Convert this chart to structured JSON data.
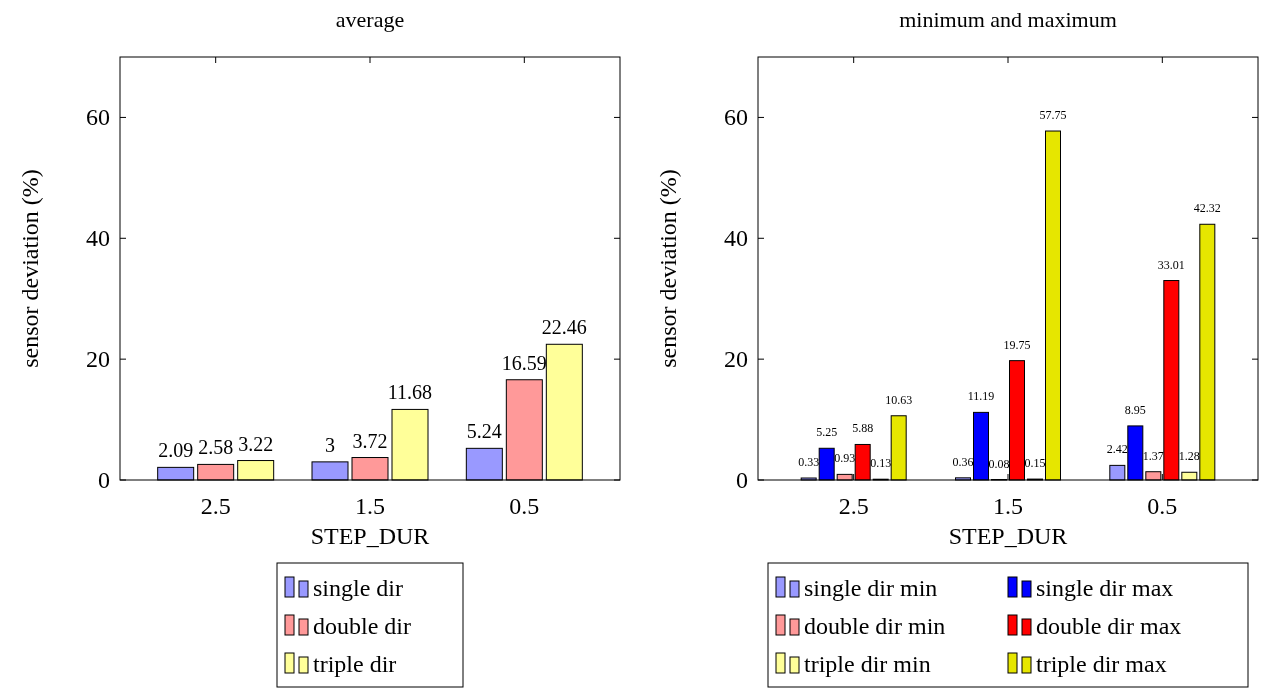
{
  "chart_data": [
    {
      "type": "bar",
      "title": "average",
      "xlabel": "STEP_DUR",
      "ylabel": "sensor deviation (%)",
      "categories": [
        "2.5",
        "1.5",
        "0.5"
      ],
      "ylim": [
        0,
        70
      ],
      "yticks": [
        0,
        20,
        40,
        60
      ],
      "data_labels": true,
      "legend": "bottom",
      "series": [
        {
          "name": "single dir",
          "color": "#9999ff",
          "values": [
            2.09,
            3,
            5.24
          ]
        },
        {
          "name": "double dir",
          "color": "#ff9999",
          "values": [
            2.58,
            3.72,
            16.59
          ]
        },
        {
          "name": "triple dir",
          "color": "#ffff99",
          "values": [
            3.22,
            11.68,
            22.46
          ]
        }
      ]
    },
    {
      "type": "bar",
      "title": "minimum and maximum",
      "xlabel": "STEP_DUR",
      "ylabel": "sensor deviation (%)",
      "categories": [
        "2.5",
        "1.5",
        "0.5"
      ],
      "ylim": [
        0,
        70
      ],
      "yticks": [
        0,
        20,
        40,
        60
      ],
      "data_labels": true,
      "legend": "bottom",
      "series": [
        {
          "name": "single dir min",
          "color": "#9999ff",
          "values": [
            0.33,
            0.36,
            2.42
          ]
        },
        {
          "name": "single dir max",
          "color": "#0000ff",
          "values": [
            5.25,
            11.19,
            8.95
          ]
        },
        {
          "name": "double dir min",
          "color": "#ff9999",
          "values": [
            0.93,
            0.08,
            1.37
          ]
        },
        {
          "name": "double dir max",
          "color": "#ff0000",
          "values": [
            5.88,
            19.75,
            33.01
          ]
        },
        {
          "name": "triple dir min",
          "color": "#ffff99",
          "values": [
            0.13,
            0.15,
            1.28
          ]
        },
        {
          "name": "triple dir max",
          "color": "#e6e600",
          "values": [
            10.63,
            57.75,
            42.32
          ]
        }
      ]
    }
  ]
}
